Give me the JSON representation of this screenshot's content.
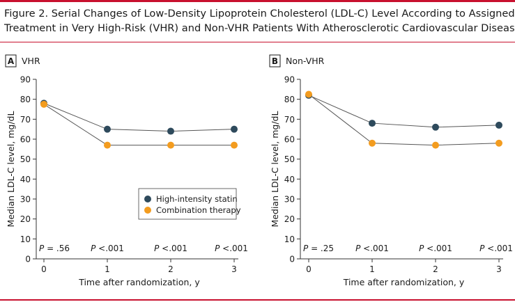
{
  "figure": {
    "title_line1": "Figure 2. Serial Changes of Low-Density Lipoprotein Cholesterol (LDL-C) Level According to Assigned",
    "title_line2": "Treatment in Very High-Risk (VHR) and Non-VHR Patients With Atherosclerotic Cardiovascular Disease"
  },
  "colors": {
    "statin": "#2e4a5c",
    "combo": "#f39c1f",
    "line": "#555555",
    "accent": "#c8102e",
    "axis": "#333333"
  },
  "chart_data": [
    {
      "type": "line",
      "panel_letter": "A",
      "panel_title": "VHR",
      "ylabel": "Median LDL-C level, mg/dL",
      "xlabel": "Time after randomization, y",
      "x": [
        0,
        1,
        2,
        3
      ],
      "ylim": [
        0,
        90
      ],
      "yticks": [
        0,
        10,
        20,
        30,
        40,
        50,
        60,
        70,
        80,
        90
      ],
      "series": [
        {
          "name": "High-intensity statin",
          "values": [
            78,
            65,
            64,
            65
          ]
        },
        {
          "name": "Combination therapy",
          "values": [
            77.5,
            57,
            57,
            57
          ]
        }
      ],
      "p_values": [
        "= .56",
        "<.001",
        "<.001",
        "<.001"
      ],
      "legend": "bottom-right",
      "grid": false
    },
    {
      "type": "line",
      "panel_letter": "B",
      "panel_title": "Non-VHR",
      "ylabel": "Median LDL-C level, mg/dL",
      "xlabel": "Time after randomization, y",
      "x": [
        0,
        1,
        2,
        3
      ],
      "ylim": [
        0,
        90
      ],
      "yticks": [
        0,
        10,
        20,
        30,
        40,
        50,
        60,
        70,
        80,
        90
      ],
      "series": [
        {
          "name": "High-intensity statin",
          "values": [
            82,
            68,
            66,
            67
          ]
        },
        {
          "name": "Combination therapy",
          "values": [
            82.5,
            58,
            57,
            58
          ]
        }
      ],
      "p_values": [
        "= .25",
        "<.001",
        "<.001",
        "<.001"
      ],
      "legend": "none",
      "grid": false
    }
  ]
}
